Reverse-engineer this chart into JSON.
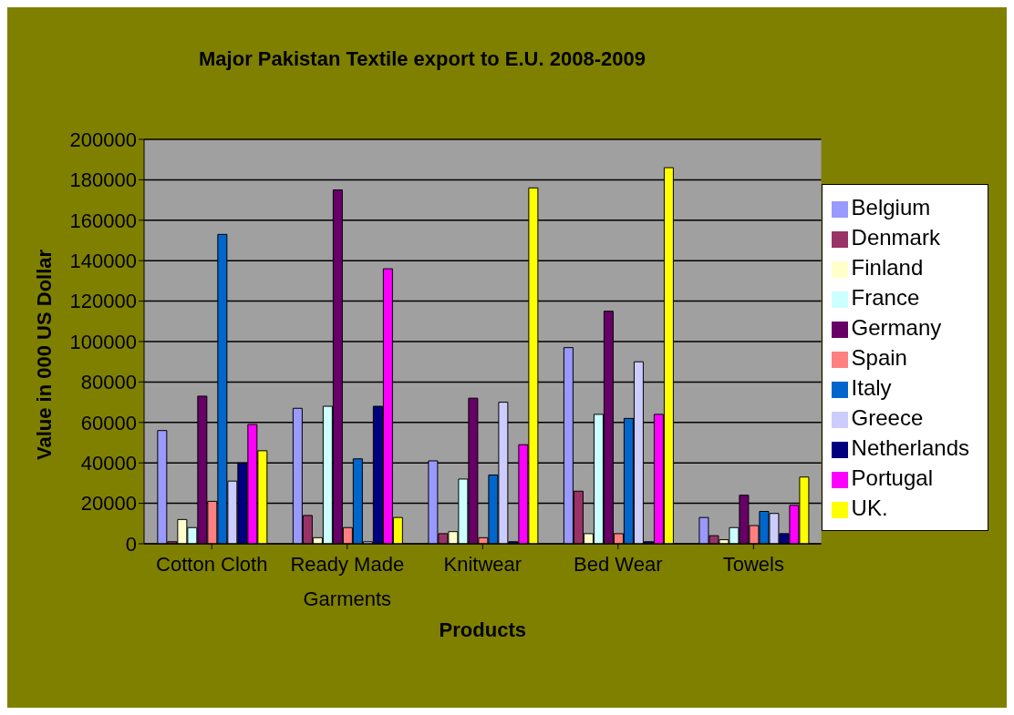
{
  "chart_data": {
    "type": "bar",
    "title": "Major Pakistan Textile export to E.U. 2008-2009",
    "xlabel": "Products",
    "ylabel": "Value in 000 US Dollar",
    "categories": [
      "Cotton Cloth",
      "Ready Made Garments",
      "Knitwear",
      "Bed Wear",
      "Towels"
    ],
    "series": [
      {
        "name": "Belgium",
        "color": "#9999ff",
        "values": [
          56000,
          67000,
          41000,
          97000,
          13000
        ]
      },
      {
        "name": "Denmark",
        "color": "#993366",
        "values": [
          1000,
          14000,
          5000,
          26000,
          4000
        ]
      },
      {
        "name": "Finland",
        "color": "#ffffcc",
        "values": [
          12000,
          3000,
          6000,
          5000,
          2000
        ]
      },
      {
        "name": "France",
        "color": "#ccffff",
        "values": [
          8000,
          68000,
          32000,
          64000,
          8000
        ]
      },
      {
        "name": "Germany",
        "color": "#660066",
        "values": [
          73000,
          175000,
          72000,
          115000,
          24000
        ]
      },
      {
        "name": "Spain",
        "color": "#ff8080",
        "values": [
          21000,
          8000,
          3000,
          5000,
          9000
        ]
      },
      {
        "name": "Italy",
        "color": "#0066cc",
        "values": [
          153000,
          42000,
          34000,
          62000,
          16000
        ]
      },
      {
        "name": "Greece",
        "color": "#ccccff",
        "values": [
          31000,
          1000,
          70000,
          90000,
          15000
        ]
      },
      {
        "name": "Netherlands",
        "color": "#000080",
        "values": [
          40000,
          68000,
          1000,
          1000,
          5000
        ]
      },
      {
        "name": "Portugal",
        "color": "#ff00ff",
        "values": [
          59000,
          136000,
          49000,
          64000,
          19000
        ]
      },
      {
        "name": "UK.",
        "color": "#ffff00",
        "values": [
          46000,
          13000,
          176000,
          186000,
          33000
        ]
      }
    ],
    "ylim": [
      0,
      200000
    ],
    "yticks": [
      0,
      20000,
      40000,
      60000,
      80000,
      100000,
      120000,
      140000,
      160000,
      180000,
      200000
    ],
    "grid": "y",
    "legend": "right"
  }
}
